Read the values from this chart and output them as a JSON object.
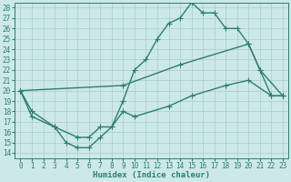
{
  "xlabel": "Humidex (Indice chaleur)",
  "bg_color": "#cce8e8",
  "line_color": "#2e7d73",
  "grid_color": "#aacccc",
  "xlim": [
    -0.5,
    23.5
  ],
  "ylim": [
    13.5,
    28.5
  ],
  "yticks": [
    14,
    15,
    16,
    17,
    18,
    19,
    20,
    21,
    22,
    23,
    24,
    25,
    26,
    27,
    28
  ],
  "xticks": [
    0,
    1,
    2,
    3,
    4,
    5,
    6,
    7,
    8,
    9,
    10,
    11,
    12,
    13,
    14,
    15,
    16,
    17,
    18,
    19,
    20,
    21,
    22,
    23
  ],
  "line1_x": [
    0,
    1,
    3,
    4,
    5,
    6,
    7,
    8,
    9,
    10,
    11,
    12,
    13,
    14,
    15,
    16,
    17,
    18,
    19,
    20,
    21,
    22,
    23
  ],
  "line1_y": [
    20.0,
    17.5,
    16.5,
    15.0,
    14.5,
    14.5,
    15.5,
    16.5,
    19.0,
    22.0,
    23.0,
    25.0,
    26.5,
    27.0,
    28.5,
    27.5,
    27.5,
    26.0,
    26.0,
    24.5,
    22.0,
    19.5,
    19.5
  ],
  "line2_x": [
    0,
    9,
    14,
    20,
    21,
    23
  ],
  "line2_y": [
    20.0,
    20.5,
    22.5,
    24.5,
    22.0,
    19.5
  ],
  "line3_x": [
    0,
    1,
    3,
    5,
    6,
    7,
    8,
    9,
    10,
    13,
    15,
    18,
    20,
    22,
    23
  ],
  "line3_y": [
    20.0,
    18.0,
    16.5,
    15.5,
    15.5,
    16.5,
    16.5,
    18.0,
    17.5,
    18.5,
    19.5,
    20.5,
    21.0,
    19.5,
    19.5
  ],
  "marker_size": 2.5,
  "linewidth": 1.0,
  "tick_fontsize": 5.5,
  "label_fontsize": 6.5
}
